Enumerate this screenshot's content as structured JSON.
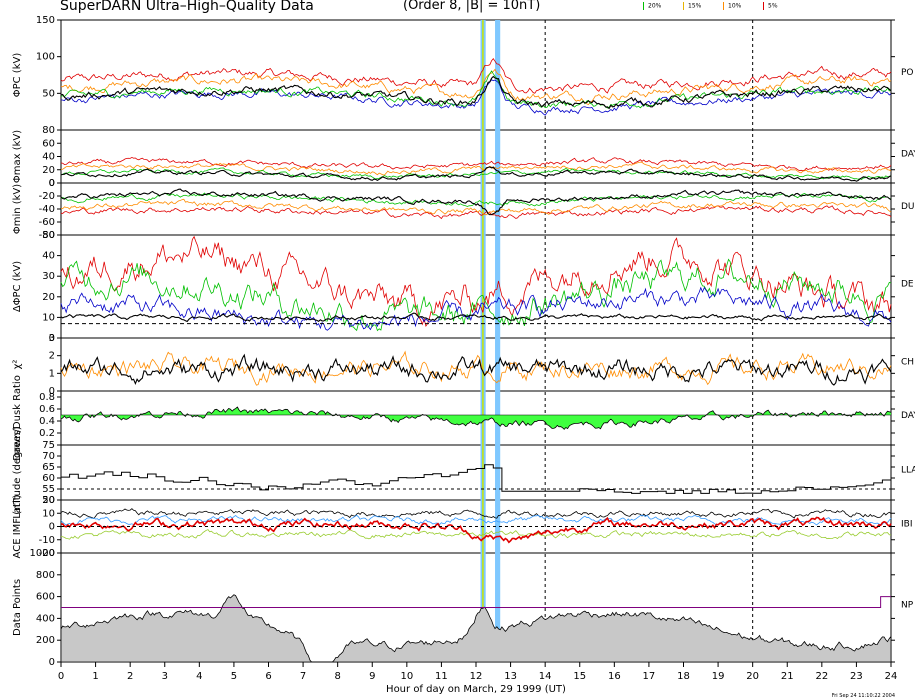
{
  "header": {
    "title": "SuperDARN Ultra–High–Quality Data",
    "subtitle": "(Order 8, |B| = 10nT)"
  },
  "legend": [
    {
      "label": "20%",
      "color": "#00c000"
    },
    {
      "label": "15%",
      "color": "#e8b400"
    },
    {
      "label": "10%",
      "color": "#ff8c00"
    },
    {
      "label": "5%",
      "color": "#e00000"
    }
  ],
  "footer": {
    "xlabel": "Hour of day on March, 29 1999 (UT)",
    "timestamp": "Fri Sep 24 11:10:22 2004"
  },
  "chart_data": {
    "type": "line",
    "x_range": [
      0,
      24
    ],
    "x_ticks": [
      0,
      1,
      2,
      3,
      4,
      5,
      6,
      7,
      8,
      9,
      10,
      11,
      12,
      13,
      14,
      15,
      16,
      17,
      18,
      19,
      20,
      21,
      22,
      23,
      24
    ],
    "event_bands": [
      {
        "from": 12.13,
        "to": 12.28,
        "color": "#7fc8ff"
      },
      {
        "from": 12.55,
        "to": 12.7,
        "color": "#7fc8ff"
      }
    ],
    "markers": [
      14,
      20
    ],
    "panels": [
      {
        "ylabel": "ΦPC (kV)",
        "right": "PO",
        "yticks": [
          50,
          100,
          150
        ],
        "ylim": [
          0,
          150
        ]
      },
      {
        "ylabel": "Φmax (kV)",
        "right": "DAY",
        "yticks": [
          0,
          20,
          40,
          60,
          80
        ],
        "ylim": [
          0,
          80
        ]
      },
      {
        "ylabel": "Φmin (kV)",
        "right": "DUS",
        "yticks": [
          -80,
          -60,
          -40,
          -20,
          0
        ],
        "ylim": [
          -80,
          0
        ]
      },
      {
        "ylabel": "ΔΦPC (kV)",
        "right": "DE",
        "yticks": [
          0,
          10,
          20,
          30,
          40,
          50
        ],
        "ylim": [
          0,
          50
        ]
      },
      {
        "ylabel": "χ²",
        "right": "CH",
        "yticks": [
          0,
          1,
          2,
          3
        ],
        "ylim": [
          0,
          3
        ]
      },
      {
        "ylabel": "Dawn/Dusk Ratio",
        "right": "DAY",
        "yticks": [
          0.2,
          0.4,
          0.6,
          0.8
        ],
        "ylim": [
          0,
          0.9
        ]
      },
      {
        "ylabel": "Latitude (degrees)",
        "right": "LLA",
        "yticks": [
          50,
          55,
          60,
          65,
          70,
          75
        ],
        "ylim": [
          50,
          75
        ]
      },
      {
        "ylabel": "ACE IMF (nT)",
        "right": "IBI",
        "yticks": [
          -20,
          -10,
          0,
          10,
          20
        ],
        "ylim": [
          -20,
          20
        ]
      },
      {
        "ylabel": "Data Points",
        "right": "NP",
        "yticks": [
          0,
          200,
          400,
          600,
          800,
          1000
        ],
        "ylim": [
          0,
          1000
        ]
      }
    ]
  }
}
